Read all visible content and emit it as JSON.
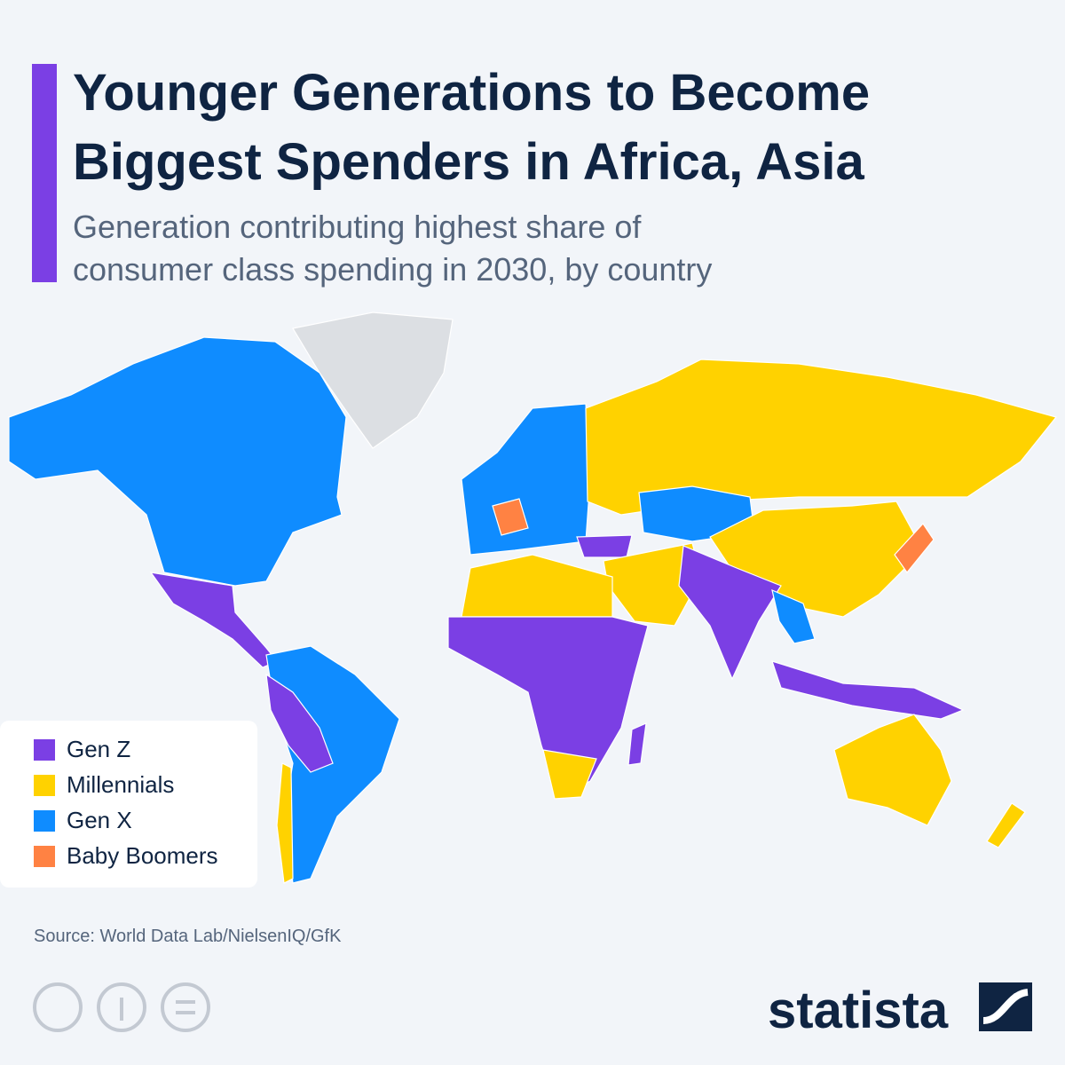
{
  "header": {
    "title_lines": [
      "Younger Generations to Become",
      "Biggest Spenders in Africa, Asia"
    ],
    "subtitle_lines": [
      "Generation contributing highest share of",
      "consumer class spending in 2030, by country"
    ]
  },
  "legend": {
    "items": [
      {
        "label": "Gen Z",
        "color": "#7b3fe4"
      },
      {
        "label": "Millennials",
        "color": "#ffd200"
      },
      {
        "label": "Gen X",
        "color": "#0f8cff"
      },
      {
        "label": "Baby Boomers",
        "color": "#ff8243"
      }
    ]
  },
  "footer": {
    "source": "Source: World Data Lab/NielsenIQ/GfK",
    "logo": "statista"
  }
}
